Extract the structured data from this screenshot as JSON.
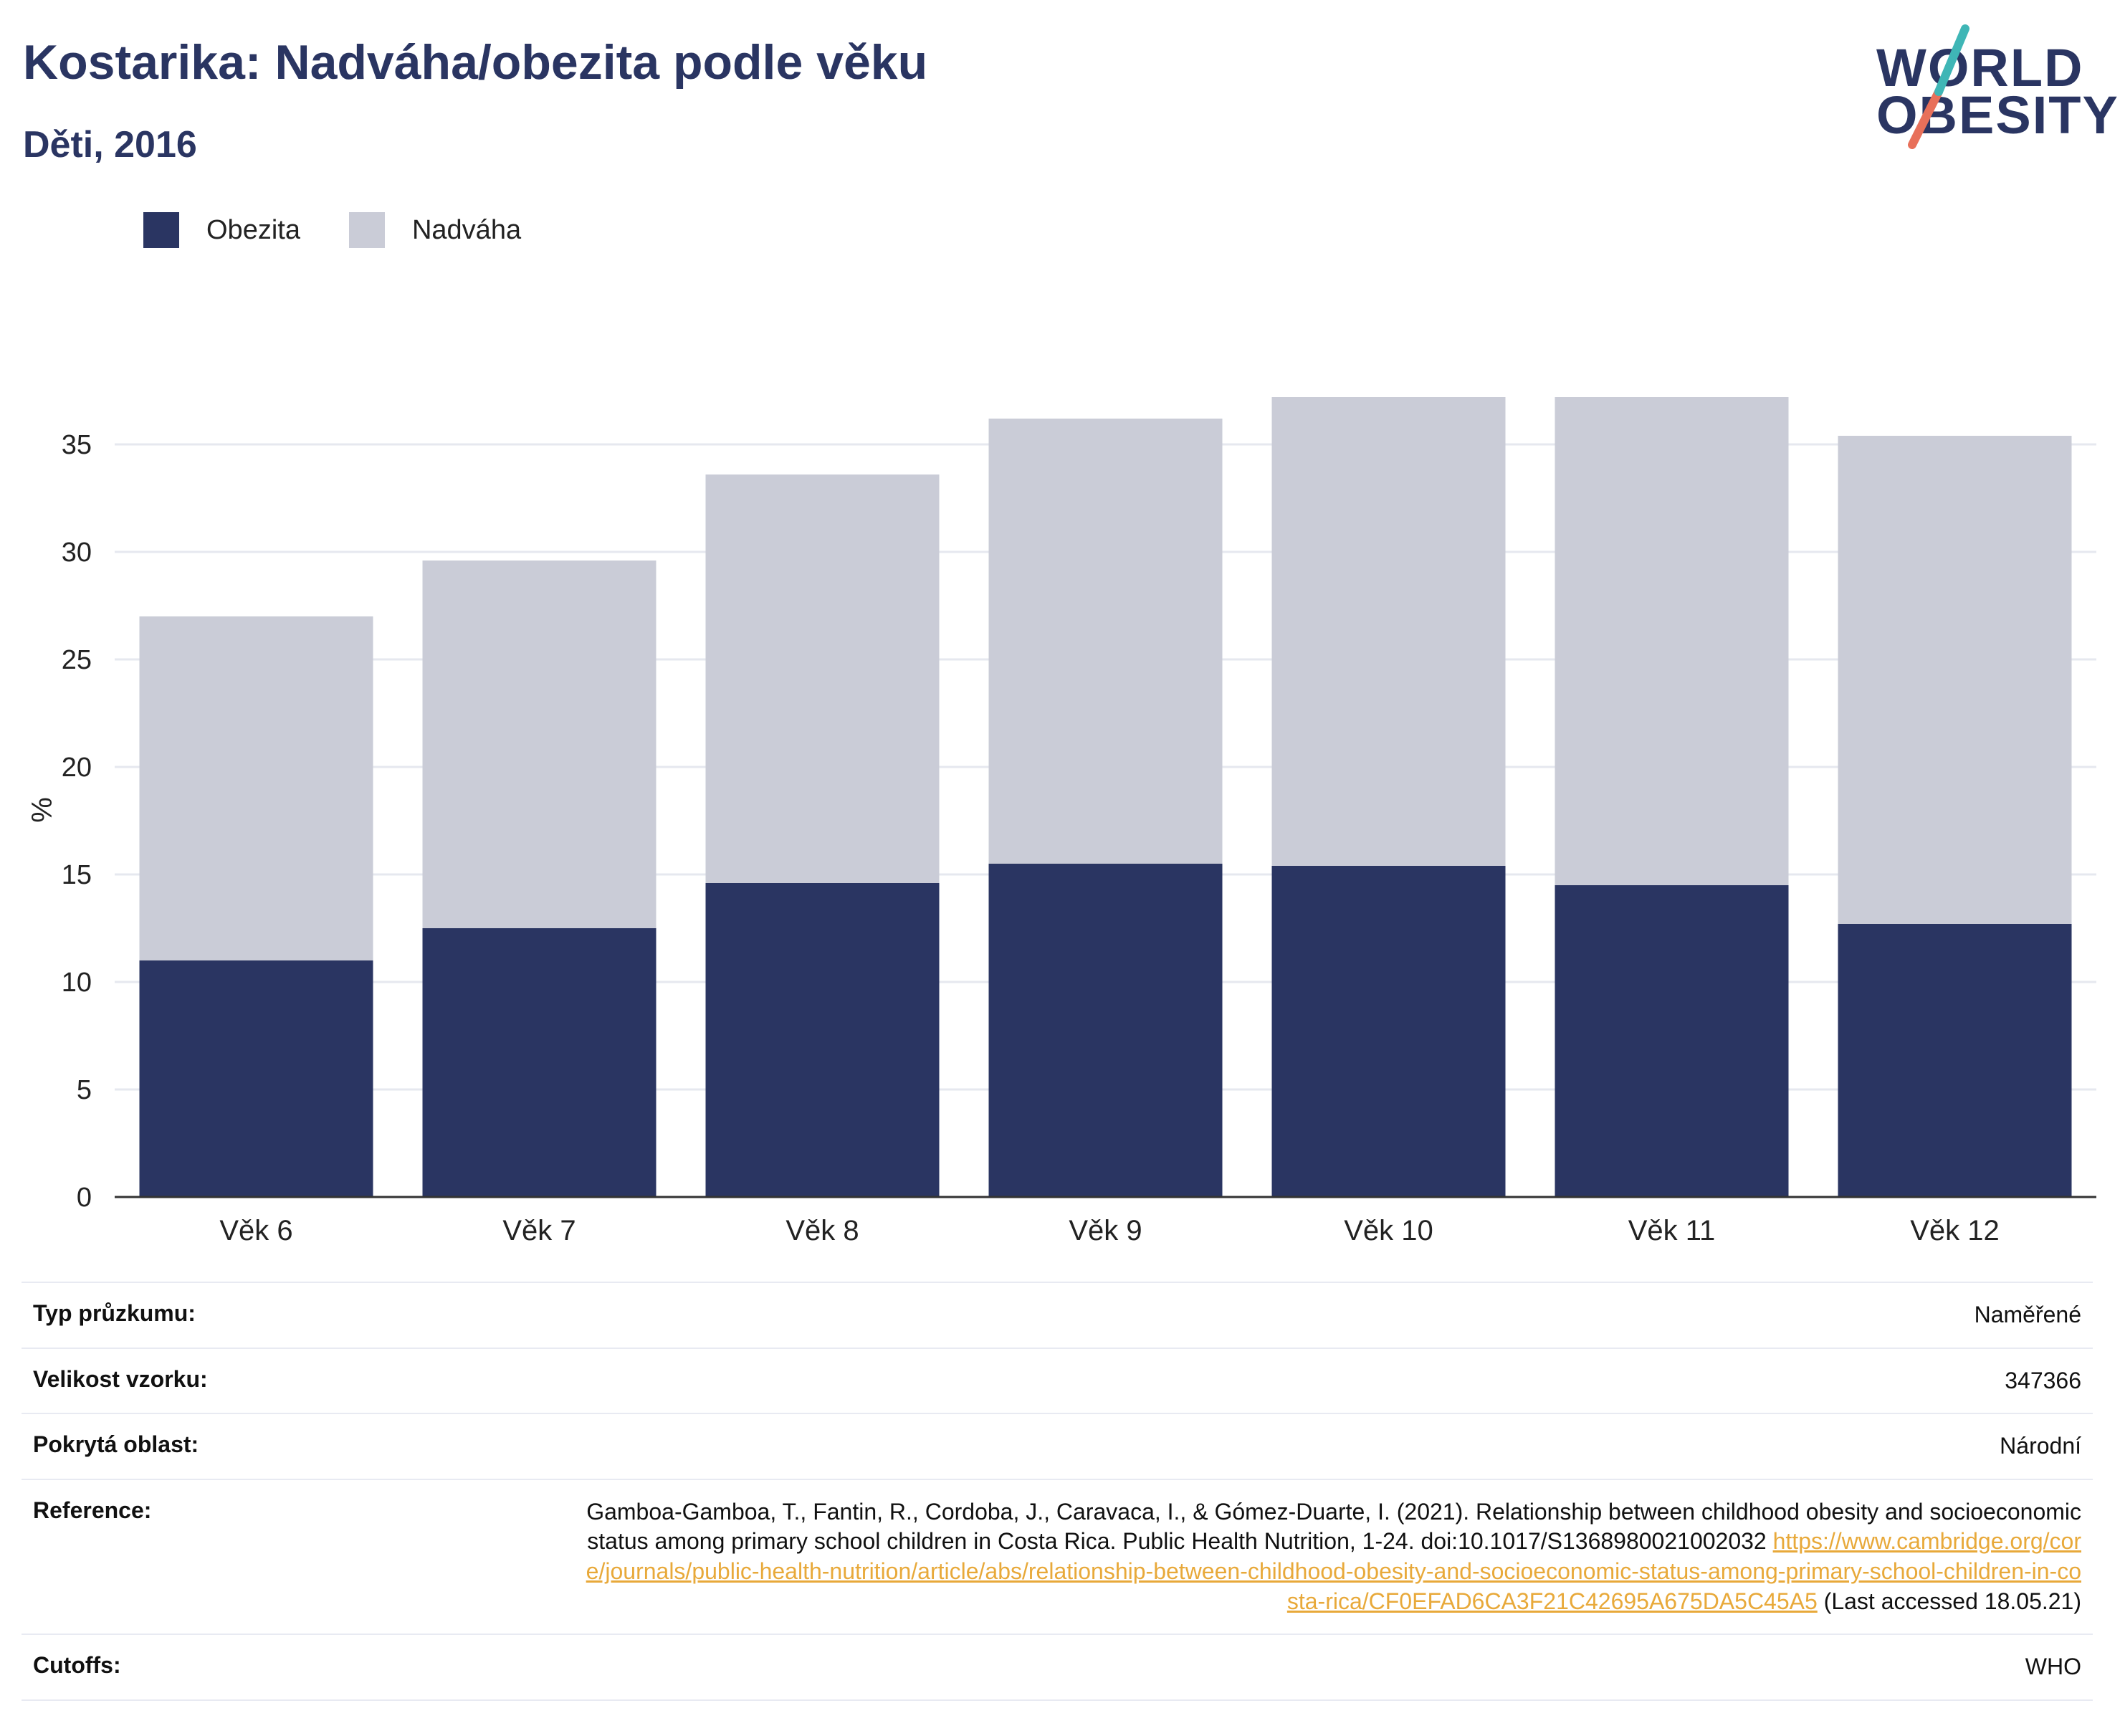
{
  "header": {
    "title": "Kostarika: Nadváha/obezita podle věku",
    "subtitle": "Děti, 2016"
  },
  "logo": {
    "line1": "WORLD",
    "line2": "OBESITY",
    "accent_teal": "#3fb6b6",
    "accent_coral": "#e8705a"
  },
  "colors": {
    "obesity": "#2a3562",
    "overweight": "#caccd7",
    "grid": "#e6e8ef",
    "axis": "#333333"
  },
  "chart_data": {
    "type": "bar",
    "stacked": true,
    "categories": [
      "Věk 6",
      "Věk 7",
      "Věk 8",
      "Věk 9",
      "Věk 10",
      "Věk 11",
      "Věk 12"
    ],
    "series": [
      {
        "name": "Obezita",
        "values": [
          11.0,
          12.5,
          14.6,
          15.5,
          15.4,
          14.5,
          12.7
        ]
      },
      {
        "name": "Nadváha",
        "values": [
          16.0,
          17.1,
          19.0,
          20.7,
          21.8,
          22.7,
          22.7
        ]
      }
    ],
    "ylabel": "%",
    "ylim": [
      0,
      37.5
    ],
    "yticks": [
      0,
      5,
      10,
      15,
      20,
      25,
      30,
      35
    ],
    "grid": true,
    "legend_position": "top-left"
  },
  "info": {
    "rows": [
      {
        "key": "Typ průzkumu:",
        "value": "Naměřené"
      },
      {
        "key": "Velikost vzorku:",
        "value": "347366"
      },
      {
        "key": "Pokrytá oblast:",
        "value": "Národní"
      }
    ],
    "reference": {
      "key": "Reference:",
      "text": "Gamboa-Gamboa, T., Fantin, R., Cordoba, J., Caravaca, I., & Gómez-Duarte, I. (2021). Relationship between childhood obesity and socioeconomic status among primary school children in Costa Rica. Public Health Nutrition, 1-24. doi:10.1017/S1368980021002032",
      "link": "https://www.cambridge.org/core/journals/public-health-nutrition/article/abs/relationship-between-childhood-obesity-and-socioeconomic-status-among-primary-school-children-in-costa-rica/CF0EFAD6CA3F21C42695A675DA5C45A5",
      "accessed": "(Last accessed 18.05.21)"
    },
    "cutoffs": {
      "key": "Cutoffs:",
      "value": "WHO"
    }
  }
}
